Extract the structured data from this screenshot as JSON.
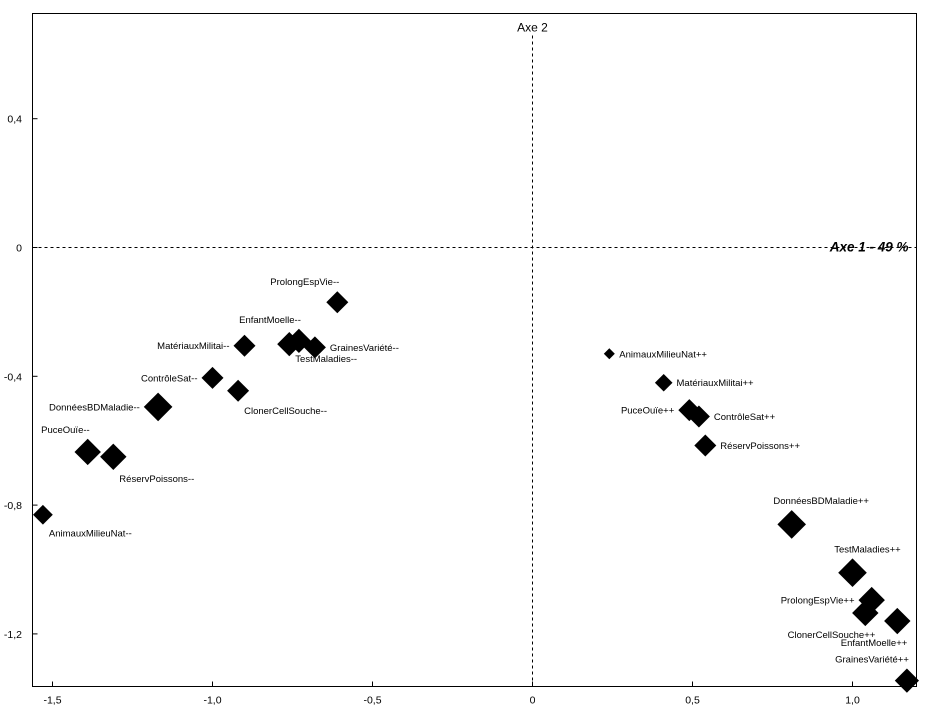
{
  "chart_data": {
    "type": "scatter",
    "xlim": [
      -1.55,
      1.2
    ],
    "ylim": [
      -1.37,
      0.72
    ],
    "x_ticks": [
      {
        "value": -1.5,
        "label": "-1,5"
      },
      {
        "value": -1.0,
        "label": "-1,0"
      },
      {
        "value": -0.5,
        "label": "-0,5"
      },
      {
        "value": 0,
        "label": "0"
      },
      {
        "value": 0.5,
        "label": "0,5"
      },
      {
        "value": 1.0,
        "label": "1,0"
      }
    ],
    "y_ticks": [
      {
        "value": 0.4,
        "label": "0,4"
      },
      {
        "value": 0,
        "label": "0"
      },
      {
        "value": -0.4,
        "label": "-0,4"
      },
      {
        "value": -0.8,
        "label": "-0,8"
      },
      {
        "value": -1.2,
        "label": "-1,2"
      }
    ],
    "x_axis_title": "Axe 1 - 49 %",
    "y_axis_title": "Axe 2",
    "grid": false,
    "reference_lines": "dashed at x=0 and y=0",
    "marker": "diamond",
    "marker_color": "#000000",
    "points": [
      {
        "label": "ProlongEspVie--",
        "x": -0.61,
        "y": -0.17,
        "size": 1.0,
        "label_pos": "above-left"
      },
      {
        "label": "EnfantMoelle--",
        "x": -0.73,
        "y": -0.29,
        "size": 1.1,
        "label_pos": "above-left"
      },
      {
        "label": "",
        "x": -0.76,
        "y": -0.3,
        "size": 1.1,
        "label_pos": "none"
      },
      {
        "label": "GrainesVariété--",
        "x": -0.68,
        "y": -0.31,
        "size": 1.0,
        "label_pos": "right"
      },
      {
        "label": "MatériauxMilitai--",
        "x": -0.9,
        "y": -0.305,
        "size": 1.0,
        "label_pos": "left"
      },
      {
        "label": "TestMaladies--",
        "x": -0.76,
        "y": -0.3,
        "size": 0,
        "label_pos": "below-right"
      },
      {
        "label": "ContrôleSat--",
        "x": -1.0,
        "y": -0.405,
        "size": 1.0,
        "label_pos": "left"
      },
      {
        "label": "ClonerCellSouche--",
        "x": -0.92,
        "y": -0.445,
        "size": 1.0,
        "label_pos": "below-right"
      },
      {
        "label": "DonnéesBDMaladie--",
        "x": -1.17,
        "y": -0.495,
        "size": 1.3,
        "label_pos": "left"
      },
      {
        "label": "PuceOuïe--",
        "x": -1.39,
        "y": -0.635,
        "size": 1.2,
        "label_pos": "above-left"
      },
      {
        "label": "RéservPoissons--",
        "x": -1.31,
        "y": -0.65,
        "size": 1.2,
        "label_pos": "below-right"
      },
      {
        "label": "AnimauxMilieuNat--",
        "x": -1.53,
        "y": -0.83,
        "size": 0.9,
        "label_pos": "below-right"
      },
      {
        "label": "AnimauxMilieuNat++",
        "x": 0.24,
        "y": -0.33,
        "size": 0.5,
        "label_pos": "right"
      },
      {
        "label": "MatériauxMilitai++",
        "x": 0.41,
        "y": -0.42,
        "size": 0.8,
        "label_pos": "right"
      },
      {
        "label": "PuceOuïe++",
        "x": 0.49,
        "y": -0.505,
        "size": 1.0,
        "label_pos": "left"
      },
      {
        "label": "ContrôleSat++",
        "x": 0.52,
        "y": -0.525,
        "size": 1.0,
        "label_pos": "right"
      },
      {
        "label": "RéservPoissons++",
        "x": 0.54,
        "y": -0.615,
        "size": 1.0,
        "label_pos": "right"
      },
      {
        "label": "DonnéesBDMaladie++",
        "x": 0.81,
        "y": -0.86,
        "size": 1.3,
        "label_pos": "above-right"
      },
      {
        "label": "TestMaladies++",
        "x": 1.0,
        "y": -1.01,
        "size": 1.3,
        "label_pos": "above-right"
      },
      {
        "label": "ProlongEspVie++",
        "x": 1.06,
        "y": -1.095,
        "size": 1.2,
        "label_pos": "left"
      },
      {
        "label": "ClonerCellSouche++",
        "x": 1.04,
        "y": -1.135,
        "size": 1.2,
        "label_pos": "below-left"
      },
      {
        "label": "EnfantMoelle++",
        "x": 1.14,
        "y": -1.16,
        "size": 1.2,
        "label_pos": "below-left"
      },
      {
        "label": "GrainesVariété++",
        "x": 1.17,
        "y": -1.345,
        "size": 1.1,
        "label_pos": "above-left"
      }
    ]
  }
}
